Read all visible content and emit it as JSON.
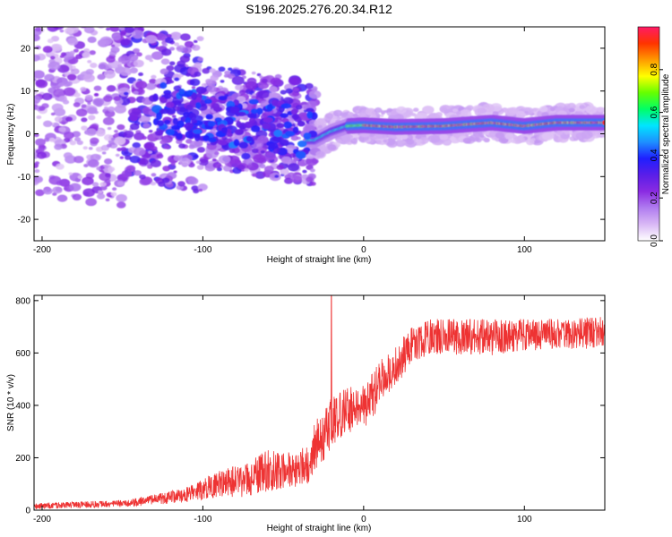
{
  "title": "S196.2025.276.20.34.R12",
  "colors": {
    "snr_line": "#ee3333",
    "frame": "#000000",
    "colormap": [
      "#ffffff",
      "#d9b8f5",
      "#b07cf0",
      "#8a2be2",
      "#5a1ee8",
      "#1f1fff",
      "#1e90ff",
      "#00e5ff",
      "#00ff66",
      "#66ff00",
      "#ffff00",
      "#ff9900",
      "#ff3300",
      "#ff1a66"
    ]
  },
  "chart_data": [
    {
      "type": "heatmap",
      "title": "S196.2025.276.20.34.R12",
      "xlabel": "Height of straight line (km)",
      "ylabel": "Frequency (Hz)",
      "xlim": [
        -205,
        150
      ],
      "ylim": [
        -25,
        25
      ],
      "xticks": [
        -200,
        -100,
        0,
        100
      ],
      "xtick_labels": [
        "-200",
        "-100",
        "0",
        "100"
      ],
      "yticks": [
        -20,
        -10,
        0,
        10,
        20
      ],
      "ytick_labels": [
        "-20",
        "-10",
        "0",
        "10",
        "20"
      ],
      "ridge": {
        "description": "strong spectral ridge",
        "points": [
          [
            -30,
            -1.5
          ],
          [
            -20,
            0.5
          ],
          [
            -10,
            1.8
          ],
          [
            0,
            2.0
          ],
          [
            20,
            1.6
          ],
          [
            50,
            1.8
          ],
          [
            80,
            2.6
          ],
          [
            100,
            1.8
          ],
          [
            120,
            2.6
          ],
          [
            150,
            2.6
          ]
        ]
      },
      "colorbar": {
        "label": "Normalized spectral amplitude",
        "range": [
          0.0,
          1.0
        ],
        "ticks": [
          0.0,
          0.2,
          0.4,
          0.6,
          0.8
        ],
        "tick_labels": [
          "0.0",
          "0.2",
          "0.4",
          "0.6",
          "0.8"
        ]
      }
    },
    {
      "type": "line",
      "xlabel": "Height of straight line (km)",
      "ylabel": "SNR (10 * v/v)",
      "xlim": [
        -205,
        150
      ],
      "ylim": [
        0,
        820
      ],
      "xticks": [
        -200,
        -100,
        0,
        100
      ],
      "xtick_labels": [
        "-200",
        "-100",
        "0",
        "100"
      ],
      "yticks": [
        0,
        200,
        400,
        600,
        800
      ],
      "ytick_labels": [
        "0",
        "200",
        "400",
        "600",
        "800"
      ],
      "series": [
        {
          "name": "SNR",
          "x": [
            -205,
            -180,
            -150,
            -130,
            -110,
            -100,
            -90,
            -80,
            -70,
            -60,
            -50,
            -40,
            -35,
            -30,
            -25,
            -20,
            -15,
            -10,
            -5,
            0,
            5,
            10,
            20,
            30,
            40,
            60,
            80,
            100,
            120,
            150
          ],
          "y": [
            15,
            20,
            25,
            40,
            60,
            80,
            100,
            110,
            120,
            150,
            150,
            160,
            180,
            250,
            280,
            330,
            360,
            380,
            390,
            400,
            430,
            480,
            550,
            630,
            660,
            660,
            660,
            670,
            670,
            680
          ],
          "noise_amplitude": [
            12,
            12,
            14,
            20,
            30,
            40,
            50,
            60,
            70,
            80,
            70,
            70,
            80,
            100,
            100,
            100,
            90,
            90,
            90,
            90,
            90,
            90,
            80,
            70,
            70,
            70,
            70,
            60,
            60,
            60
          ]
        }
      ],
      "spike": {
        "x": -20,
        "y": 820
      }
    }
  ]
}
